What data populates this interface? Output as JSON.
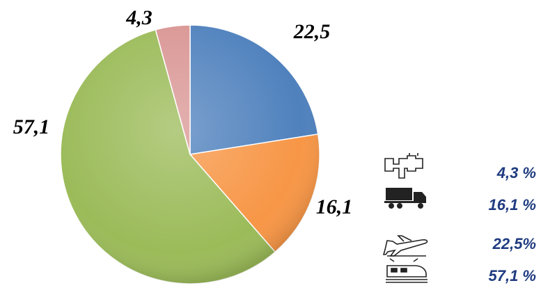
{
  "chart_data": {
    "type": "pie",
    "values": [
      22.5,
      16.1,
      57.1,
      4.3
    ],
    "value_labels": [
      "22,5",
      "16,1",
      "57,1",
      "4,3"
    ],
    "colors": [
      "#4f81bd",
      "#f79646",
      "#9bbb59",
      "#d99694"
    ],
    "legend": [
      "4,3 %",
      "16,1 %",
      "22,5%",
      "57,1 %"
    ]
  }
}
